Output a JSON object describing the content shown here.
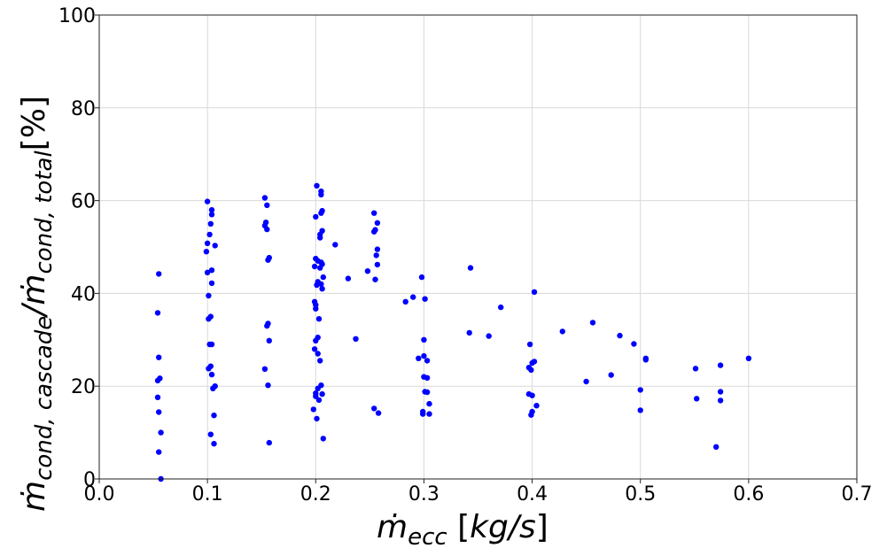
{
  "chart_data": {
    "type": "scatter",
    "xlabel": "ṁ_ecc [kg/s]",
    "ylabel": "ṁ_cond, cascade / ṁ_cond, total [%]",
    "xlim": [
      0.0,
      0.7
    ],
    "ylim": [
      0,
      100
    ],
    "xticks": [
      "0.0",
      "0.1",
      "0.2",
      "0.3",
      "0.4",
      "0.5",
      "0.6",
      "0.7"
    ],
    "yticks": [
      "0",
      "20",
      "40",
      "60",
      "80",
      "100"
    ],
    "grid": true,
    "marker_color": "#0000ff",
    "series": [
      {
        "points": [
          [
            0.054,
            35.8
          ],
          [
            0.055,
            44.2
          ],
          [
            0.055,
            26.2
          ],
          [
            0.056,
            21.7
          ],
          [
            0.054,
            21.2
          ],
          [
            0.054,
            17.6
          ],
          [
            0.055,
            14.4
          ],
          [
            0.057,
            10.0
          ],
          [
            0.055,
            5.8
          ],
          [
            0.057,
            0.0
          ],
          [
            0.1,
            59.8
          ],
          [
            0.104,
            58.0
          ],
          [
            0.104,
            57.0
          ],
          [
            0.103,
            55.0
          ],
          [
            0.102,
            52.7
          ],
          [
            0.1,
            50.8
          ],
          [
            0.107,
            50.3
          ],
          [
            0.099,
            49.0
          ],
          [
            0.104,
            45.0
          ],
          [
            0.1,
            44.5
          ],
          [
            0.104,
            42.2
          ],
          [
            0.101,
            39.5
          ],
          [
            0.103,
            35.0
          ],
          [
            0.101,
            34.5
          ],
          [
            0.102,
            29.0
          ],
          [
            0.104,
            29.0
          ],
          [
            0.103,
            24.3
          ],
          [
            0.101,
            23.8
          ],
          [
            0.104,
            22.5
          ],
          [
            0.107,
            20.0
          ],
          [
            0.105,
            19.5
          ],
          [
            0.106,
            13.7
          ],
          [
            0.103,
            9.6
          ],
          [
            0.106,
            7.6
          ],
          [
            0.153,
            60.6
          ],
          [
            0.155,
            59.0
          ],
          [
            0.154,
            55.3
          ],
          [
            0.153,
            54.6
          ],
          [
            0.155,
            53.8
          ],
          [
            0.157,
            47.7
          ],
          [
            0.156,
            47.2
          ],
          [
            0.156,
            33.5
          ],
          [
            0.155,
            33.0
          ],
          [
            0.157,
            29.8
          ],
          [
            0.153,
            23.7
          ],
          [
            0.156,
            20.2
          ],
          [
            0.157,
            7.8
          ],
          [
            0.201,
            63.2
          ],
          [
            0.205,
            62.0
          ],
          [
            0.205,
            61.3
          ],
          [
            0.206,
            57.8
          ],
          [
            0.205,
            57.3
          ],
          [
            0.2,
            56.5
          ],
          [
            0.206,
            53.5
          ],
          [
            0.204,
            52.7
          ],
          [
            0.204,
            52.0
          ],
          [
            0.2,
            47.5
          ],
          [
            0.202,
            47.0
          ],
          [
            0.205,
            46.7
          ],
          [
            0.206,
            46.3
          ],
          [
            0.199,
            45.8
          ],
          [
            0.204,
            45.5
          ],
          [
            0.207,
            43.5
          ],
          [
            0.202,
            42.5
          ],
          [
            0.205,
            42.0
          ],
          [
            0.201,
            41.8
          ],
          [
            0.206,
            41.0
          ],
          [
            0.199,
            38.2
          ],
          [
            0.2,
            37.5
          ],
          [
            0.2,
            36.7
          ],
          [
            0.203,
            34.5
          ],
          [
            0.202,
            30.5
          ],
          [
            0.2,
            29.8
          ],
          [
            0.199,
            28.0
          ],
          [
            0.202,
            27.0
          ],
          [
            0.204,
            25.5
          ],
          [
            0.205,
            20.2
          ],
          [
            0.202,
            19.5
          ],
          [
            0.2,
            18.5
          ],
          [
            0.206,
            18.3
          ],
          [
            0.2,
            17.8
          ],
          [
            0.203,
            17.0
          ],
          [
            0.198,
            15.0
          ],
          [
            0.201,
            13.0
          ],
          [
            0.207,
            8.7
          ],
          [
            0.218,
            50.5
          ],
          [
            0.23,
            43.2
          ],
          [
            0.237,
            30.2
          ],
          [
            0.248,
            44.8
          ],
          [
            0.254,
            57.3
          ],
          [
            0.257,
            55.2
          ],
          [
            0.255,
            53.7
          ],
          [
            0.254,
            53.3
          ],
          [
            0.257,
            49.5
          ],
          [
            0.256,
            48.2
          ],
          [
            0.257,
            46.2
          ],
          [
            0.255,
            43.0
          ],
          [
            0.254,
            15.2
          ],
          [
            0.258,
            14.2
          ],
          [
            0.283,
            38.2
          ],
          [
            0.29,
            39.2
          ],
          [
            0.298,
            43.5
          ],
          [
            0.301,
            38.8
          ],
          [
            0.3,
            30.0
          ],
          [
            0.295,
            26.0
          ],
          [
            0.3,
            26.5
          ],
          [
            0.303,
            25.5
          ],
          [
            0.3,
            22.0
          ],
          [
            0.303,
            21.8
          ],
          [
            0.301,
            18.8
          ],
          [
            0.303,
            18.7
          ],
          [
            0.305,
            16.2
          ],
          [
            0.299,
            14.5
          ],
          [
            0.299,
            14.0
          ],
          [
            0.305,
            14.0
          ],
          [
            0.343,
            45.5
          ],
          [
            0.342,
            31.5
          ],
          [
            0.36,
            30.8
          ],
          [
            0.371,
            37.0
          ],
          [
            0.402,
            40.3
          ],
          [
            0.398,
            29.0
          ],
          [
            0.402,
            25.3
          ],
          [
            0.397,
            24.0
          ],
          [
            0.4,
            25.0
          ],
          [
            0.399,
            23.5
          ],
          [
            0.397,
            18.3
          ],
          [
            0.4,
            18.0
          ],
          [
            0.404,
            15.8
          ],
          [
            0.4,
            14.5
          ],
          [
            0.399,
            13.8
          ],
          [
            0.428,
            31.8
          ],
          [
            0.45,
            21.0
          ],
          [
            0.456,
            33.7
          ],
          [
            0.473,
            22.4
          ],
          [
            0.481,
            30.9
          ],
          [
            0.494,
            29.1
          ],
          [
            0.5,
            19.2
          ],
          [
            0.5,
            14.8
          ],
          [
            0.505,
            26.0
          ],
          [
            0.505,
            25.7
          ],
          [
            0.551,
            23.8
          ],
          [
            0.552,
            17.3
          ],
          [
            0.57,
            6.9
          ],
          [
            0.574,
            24.5
          ],
          [
            0.574,
            18.8
          ],
          [
            0.574,
            16.9
          ],
          [
            0.6,
            26.0
          ]
        ]
      }
    ]
  }
}
